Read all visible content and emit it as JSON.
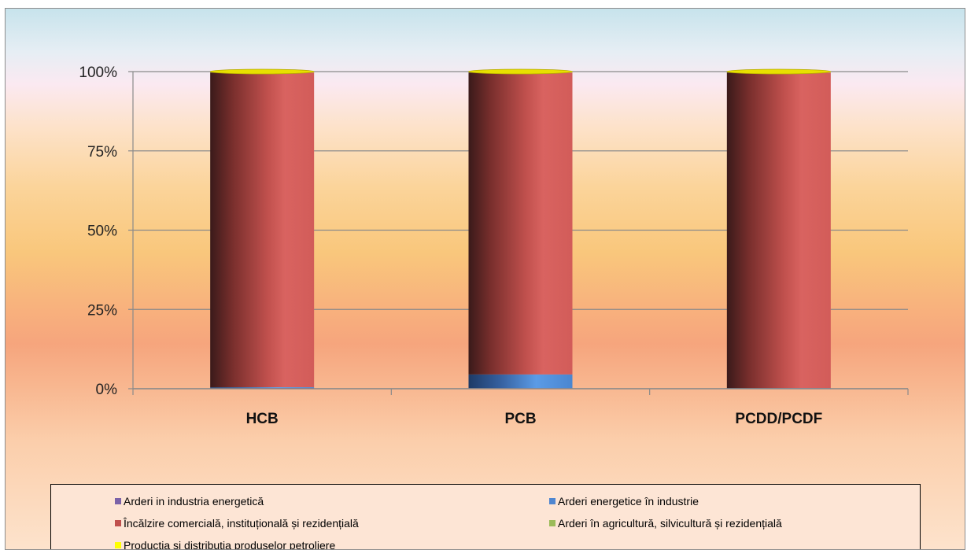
{
  "chart_data": {
    "type": "bar",
    "stacked": true,
    "percent_stacked": true,
    "categories": [
      "HCB",
      "PCB",
      "PCDD/PCDF"
    ],
    "yticks": [
      "0%",
      "25%",
      "50%",
      "75%",
      "100%"
    ],
    "ylim": [
      0,
      100
    ],
    "grid": true,
    "legend_position": "bottom",
    "series": [
      {
        "name": "Arderi in industria energetică",
        "color": "#7b62a8",
        "values": [
          0.3,
          0.2,
          0.1
        ]
      },
      {
        "name": "Arderi energetice în industrie",
        "color": "#4f86d0",
        "values": [
          0.2,
          4.3,
          0.1
        ]
      },
      {
        "name": "Încălzire comercială,  instituțională și rezidențială",
        "color": "#c0504d",
        "values": [
          99.2,
          95.2,
          99.5
        ]
      },
      {
        "name": "Arderi în agricultură,  silvicultură și rezidențială",
        "color": "#9bbb59",
        "values": [
          0.1,
          0.1,
          0.1
        ]
      },
      {
        "name": "Producția și distribuția produselor petroliere",
        "color": "#ffff00",
        "values": [
          0.2,
          0.2,
          0.2
        ]
      }
    ]
  }
}
